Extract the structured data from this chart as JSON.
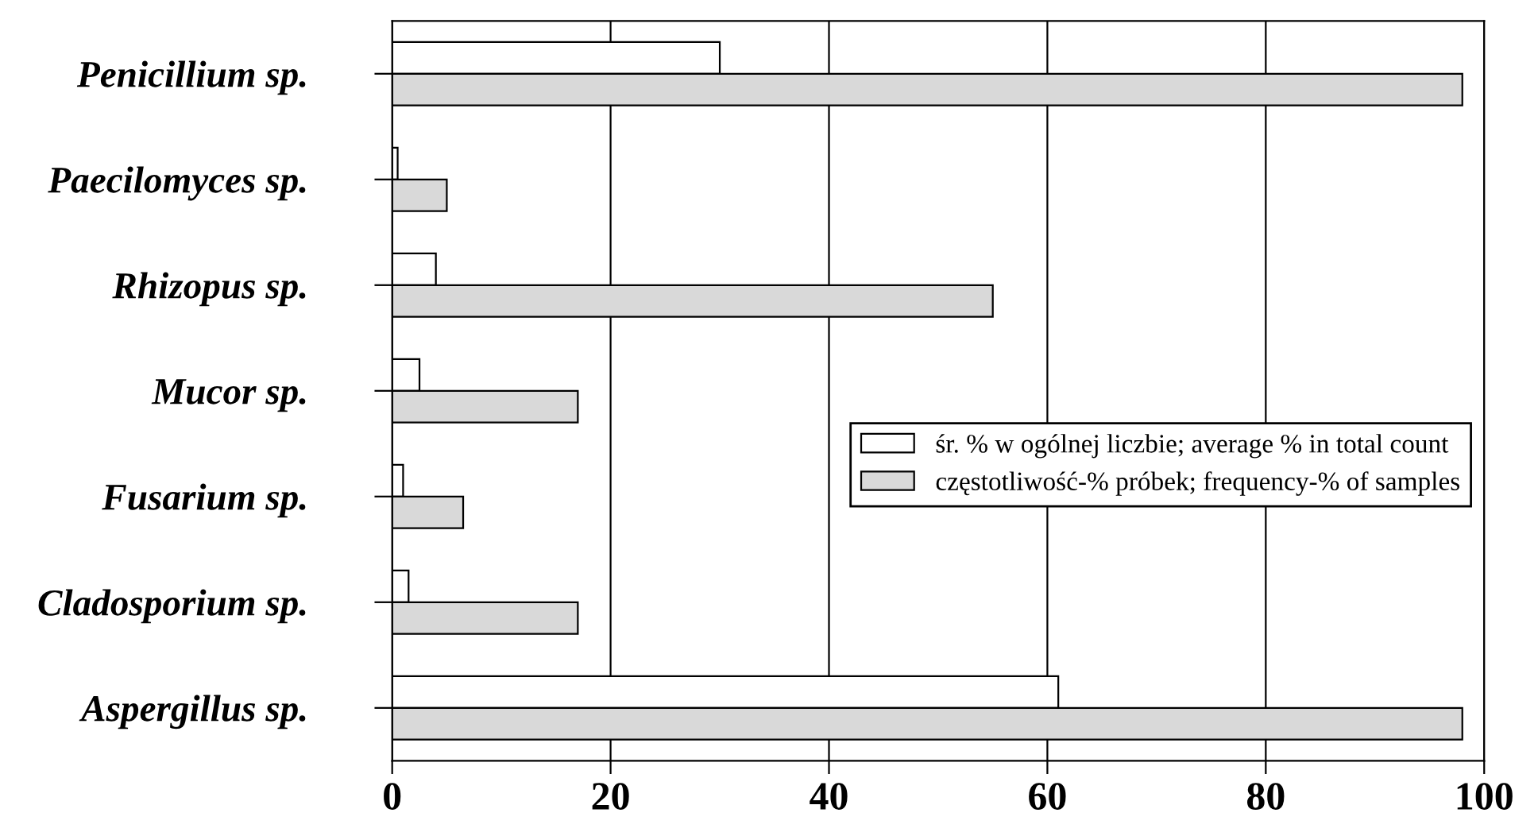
{
  "chart_data": {
    "type": "bar",
    "orientation": "horizontal",
    "categories": [
      "Penicillium sp.",
      "Paecilomyces sp.",
      "Rhizopus sp.",
      "Mucor sp.",
      "Fusarium sp.",
      "Cladosporium sp.",
      "Aspergillus sp."
    ],
    "series": [
      {
        "name": "śr. % w ogólnej liczbie; average % in total count",
        "color": "#ffffff",
        "values": [
          30,
          0.5,
          4,
          2.5,
          1,
          1.5,
          61
        ]
      },
      {
        "name": "częstotliwość-% próbek; frequency-% of samples",
        "color": "#d9d9d9",
        "values": [
          98,
          5,
          55,
          17,
          6.5,
          17,
          98
        ]
      }
    ],
    "xlim": [
      0,
      100
    ],
    "xticks": [
      0,
      20,
      40,
      60,
      80,
      100
    ],
    "grid": "x",
    "legend": "right"
  }
}
